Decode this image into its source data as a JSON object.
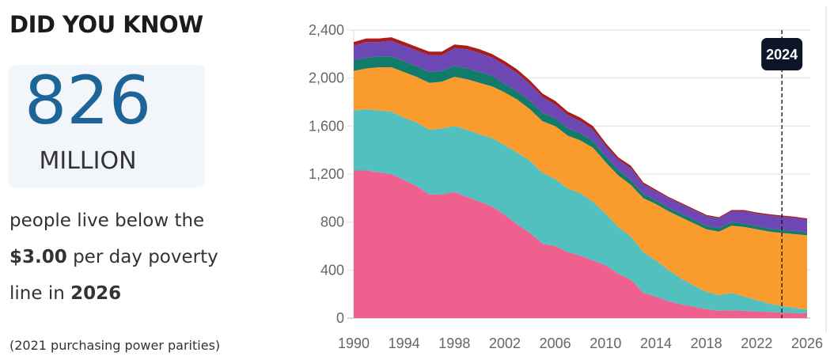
{
  "panel": {
    "heading": "DID YOU KNOW",
    "number": "826",
    "unit": "MILLION",
    "line1": "people live below the",
    "line2_bold": "$3.00",
    "line2_rest": " per day poverty",
    "line3_prefix": "line in ",
    "line3_bold": "2026",
    "note": "(2021 purchasing power parities)",
    "number_color": "#1d6597"
  },
  "chart_data": {
    "type": "area",
    "stacked": true,
    "title": "",
    "xlabel": "",
    "ylabel": "",
    "xlim": [
      1990,
      2026
    ],
    "ylim": [
      0,
      2400
    ],
    "grid": true,
    "legend": "none",
    "x_ticks": [
      "1990",
      "1994",
      "1998",
      "2002",
      "2006",
      "2010",
      "2014",
      "2018",
      "2022",
      "2026"
    ],
    "y_ticks": [
      "0",
      "400",
      "800",
      "1,200",
      "1,600",
      "2,000",
      "2,400"
    ],
    "y_tick_values": [
      0,
      400,
      800,
      1200,
      1600,
      2000,
      2400
    ],
    "marker": {
      "x": 2024,
      "label": "2024"
    },
    "x": [
      1990,
      1991,
      1992,
      1993,
      1994,
      1995,
      1996,
      1997,
      1998,
      1999,
      2000,
      2001,
      2002,
      2003,
      2004,
      2005,
      2006,
      2007,
      2008,
      2009,
      2010,
      2011,
      2012,
      2013,
      2014,
      2015,
      2016,
      2017,
      2018,
      2019,
      2020,
      2021,
      2022,
      2023,
      2024,
      2025,
      2026
    ],
    "series": [
      {
        "color": "#f0608f",
        "values": [
          1230,
          1230,
          1215,
          1200,
          1150,
          1100,
          1030,
          1030,
          1050,
          1010,
          970,
          930,
          860,
          780,
          710,
          620,
          600,
          550,
          520,
          480,
          440,
          370,
          320,
          210,
          180,
          140,
          115,
          95,
          75,
          60,
          65,
          60,
          55,
          50,
          45,
          42,
          40
        ]
      },
      {
        "color": "#52c0bf",
        "values": [
          500,
          510,
          515,
          520,
          520,
          530,
          540,
          550,
          550,
          560,
          560,
          570,
          580,
          600,
          600,
          590,
          560,
          530,
          520,
          490,
          430,
          390,
          360,
          340,
          300,
          260,
          215,
          175,
          145,
          130,
          145,
          120,
          95,
          70,
          55,
          43,
          30
        ]
      },
      {
        "color": "#fa9b2e",
        "values": [
          330,
          340,
          360,
          370,
          380,
          380,
          390,
          390,
          410,
          420,
          430,
          430,
          440,
          440,
          430,
          430,
          440,
          440,
          440,
          450,
          430,
          430,
          430,
          450,
          470,
          490,
          510,
          520,
          520,
          530,
          560,
          580,
          590,
          600,
          610,
          615,
          620
        ]
      },
      {
        "color": "#137b6a",
        "values": [
          90,
          90,
          90,
          90,
          90,
          90,
          90,
          90,
          90,
          90,
          90,
          90,
          70,
          70,
          70,
          70,
          65,
          60,
          60,
          55,
          50,
          45,
          40,
          35,
          30,
          30,
          30,
          30,
          30,
          30,
          30,
          28,
          27,
          26,
          25,
          25,
          25
        ]
      },
      {
        "color": "#6d48b4",
        "values": [
          120,
          130,
          120,
          130,
          130,
          130,
          140,
          130,
          150,
          160,
          160,
          150,
          160,
          150,
          140,
          130,
          115,
          110,
          100,
          95,
          85,
          85,
          100,
          80,
          78,
          80,
          80,
          80,
          80,
          80,
          90,
          102,
          103,
          109,
          110,
          110,
          105
        ]
      },
      {
        "color": "#a81c1e",
        "values": [
          30,
          30,
          30,
          30,
          30,
          30,
          30,
          30,
          30,
          30,
          30,
          30,
          30,
          30,
          30,
          30,
          30,
          30,
          30,
          30,
          25,
          20,
          20,
          15,
          12,
          10,
          10,
          10,
          10,
          10,
          10,
          10,
          10,
          10,
          10,
          10,
          10
        ]
      }
    ]
  }
}
